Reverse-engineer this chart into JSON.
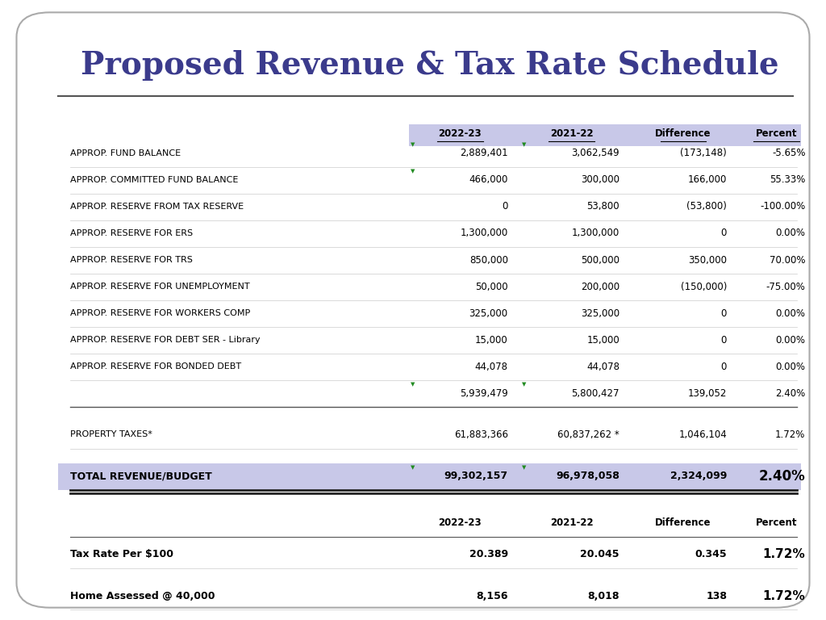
{
  "title": "Proposed Revenue & Tax Rate Schedule",
  "title_color": "#3b3b8c",
  "title_fontsize": 28,
  "background_color": "#ffffff",
  "header_bg": "#c8c8e8",
  "total_row_bg": "#c8c8e8",
  "green_marker_color": "#228B22",
  "col_headers_top": [
    "",
    "2022-23",
    "2021-22",
    "Difference",
    "Percent"
  ],
  "col_headers_bottom": [
    "",
    "2022-23",
    "2021-22",
    "Difference",
    "Percent"
  ],
  "rows": [
    {
      "label": "APPROP. FUND BALANCE",
      "val2223": "2,889,401",
      "val2122": "3,062,549",
      "diff": "(173,148)",
      "pct": "-5.65%",
      "green_left": true,
      "green_right": true,
      "bold_pct": false,
      "subtotal": false,
      "total": false,
      "blank": false
    },
    {
      "label": "APPROP. COMMITTED FUND BALANCE",
      "val2223": "466,000",
      "val2122": "300,000",
      "diff": "166,000",
      "pct": "55.33%",
      "green_left": true,
      "green_right": false,
      "bold_pct": false,
      "subtotal": false,
      "total": false,
      "blank": false
    },
    {
      "label": "APPROP. RESERVE FROM TAX RESERVE",
      "val2223": "0",
      "val2122": "53,800",
      "diff": "(53,800)",
      "pct": "-100.00%",
      "green_left": false,
      "green_right": false,
      "bold_pct": false,
      "subtotal": false,
      "total": false,
      "blank": false
    },
    {
      "label": "APPROP. RESERVE FOR ERS",
      "val2223": "1,300,000",
      "val2122": "1,300,000",
      "diff": "0",
      "pct": "0.00%",
      "green_left": false,
      "green_right": false,
      "bold_pct": false,
      "subtotal": false,
      "total": false,
      "blank": false
    },
    {
      "label": "APPROP. RESERVE FOR TRS",
      "val2223": "850,000",
      "val2122": "500,000",
      "diff": "350,000",
      "pct": "70.00%",
      "green_left": false,
      "green_right": false,
      "bold_pct": false,
      "subtotal": false,
      "total": false,
      "blank": false
    },
    {
      "label": "APPROP. RESERVE FOR UNEMPLOYMENT",
      "val2223": "50,000",
      "val2122": "200,000",
      "diff": "(150,000)",
      "pct": "-75.00%",
      "green_left": false,
      "green_right": false,
      "bold_pct": false,
      "subtotal": false,
      "total": false,
      "blank": false
    },
    {
      "label": "APPROP. RESERVE FOR WORKERS COMP",
      "val2223": "325,000",
      "val2122": "325,000",
      "diff": "0",
      "pct": "0.00%",
      "green_left": false,
      "green_right": false,
      "bold_pct": false,
      "subtotal": false,
      "total": false,
      "blank": false
    },
    {
      "label": "APPROP. RESERVE FOR DEBT SER - Library",
      "val2223": "15,000",
      "val2122": "15,000",
      "diff": "0",
      "pct": "0.00%",
      "green_left": false,
      "green_right": false,
      "bold_pct": false,
      "subtotal": false,
      "total": false,
      "blank": false
    },
    {
      "label": "APPROP. RESERVE FOR BONDED DEBT",
      "val2223": "44,078",
      "val2122": "44,078",
      "diff": "0",
      "pct": "0.00%",
      "green_left": false,
      "green_right": false,
      "bold_pct": false,
      "subtotal": false,
      "total": false,
      "blank": false
    },
    {
      "label": "",
      "val2223": "5,939,479",
      "val2122": "5,800,427",
      "diff": "139,052",
      "pct": "2.40%",
      "green_left": true,
      "green_right": true,
      "bold_pct": false,
      "subtotal": true,
      "total": false,
      "blank": false
    },
    {
      "label": "",
      "val2223": "",
      "val2122": "",
      "diff": "",
      "pct": "",
      "green_left": false,
      "green_right": false,
      "bold_pct": false,
      "subtotal": false,
      "total": false,
      "blank": true
    },
    {
      "label": "PROPERTY TAXES*",
      "val2223": "61,883,366",
      "val2122": "60,837,262 *",
      "diff": "1,046,104",
      "pct": "1.72%",
      "green_left": false,
      "green_right": false,
      "bold_pct": false,
      "subtotal": false,
      "total": false,
      "blank": false
    },
    {
      "label": "",
      "val2223": "",
      "val2122": "",
      "diff": "",
      "pct": "",
      "green_left": false,
      "green_right": false,
      "bold_pct": false,
      "subtotal": false,
      "total": false,
      "blank": true
    },
    {
      "label": "TOTAL REVENUE/BUDGET",
      "val2223": "99,302,157",
      "val2122": "96,978,058",
      "diff": "2,324,099",
      "pct": "2.40%",
      "green_left": true,
      "green_right": true,
      "bold_pct": true,
      "subtotal": false,
      "total": true,
      "blank": false
    }
  ],
  "bottom_rows": [
    {
      "label": "",
      "val2223": "",
      "val2122": "",
      "diff": "",
      "pct": "",
      "bold": false,
      "bold_pct": false,
      "blank": true
    },
    {
      "label": "Tax Rate Per $100",
      "val2223": "20.389",
      "val2122": "20.045",
      "diff": "0.345",
      "pct": "1.72%",
      "bold": true,
      "bold_pct": true,
      "blank": false
    },
    {
      "label": "",
      "val2223": "",
      "val2122": "",
      "diff": "",
      "pct": "",
      "bold": false,
      "bold_pct": false,
      "blank": true
    },
    {
      "label": "Home Assessed @ 40,000",
      "val2223": "8,156",
      "val2122": "8,018",
      "diff": "138",
      "pct": "1.72%",
      "bold": true,
      "bold_pct": true,
      "blank": false
    }
  ]
}
